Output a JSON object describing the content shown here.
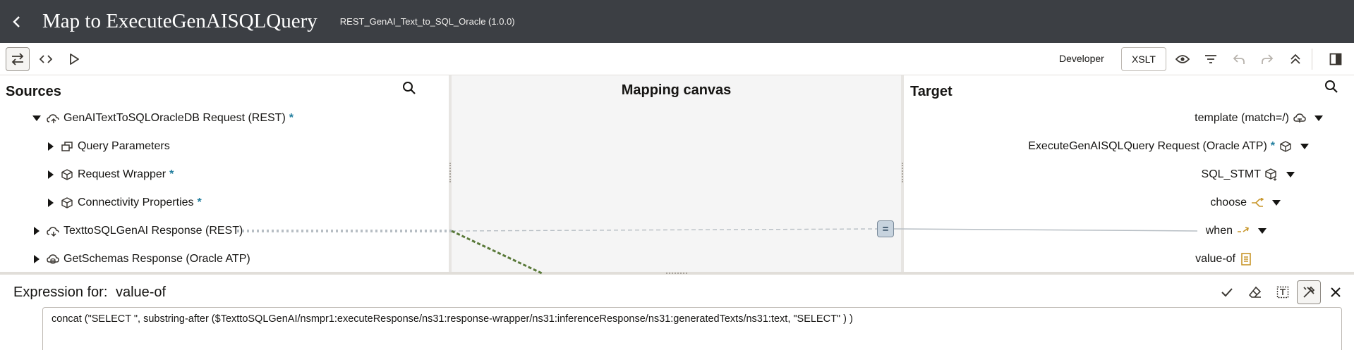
{
  "header": {
    "title": "Map to ExecuteGenAISQLQuery",
    "integration": "REST_GenAI_Text_to_SQL_Oracle (1.0.0)"
  },
  "toolbar": {
    "mode_label": "Developer",
    "xslt_label": "XSLT"
  },
  "sources": {
    "title": "Sources",
    "items": [
      {
        "label": "GenAITextToSQLOracleDB Request (REST)",
        "required": "*",
        "icon": "rest-trigger-icon",
        "state": "expanded"
      },
      {
        "label": "Query Parameters",
        "icon": "query-parameters-icon",
        "state": "collapsed"
      },
      {
        "label": "Request Wrapper",
        "required": "*",
        "icon": "cube-icon",
        "state": "collapsed"
      },
      {
        "label": "Connectivity Properties",
        "required": "*",
        "icon": "cube-icon",
        "state": "collapsed"
      },
      {
        "label": "TexttoSQLGenAI Response (REST)",
        "icon": "rest-invoke-icon",
        "state": "collapsed"
      },
      {
        "label": "GetSchemas Response (Oracle ATP)",
        "icon": "database-icon",
        "state": "collapsed"
      }
    ]
  },
  "canvas": {
    "title": "Mapping canvas",
    "function_symbol": "="
  },
  "target": {
    "title": "Target",
    "items": [
      {
        "label": "template (match=/)",
        "icon": "template-icon"
      },
      {
        "label": "ExecuteGenAISQLQuery Request (Oracle ATP)",
        "required": "*",
        "icon": "cube-icon"
      },
      {
        "label": "SQL_STMT",
        "icon": "cube-download-icon"
      },
      {
        "label": "choose",
        "icon": "choose-icon"
      },
      {
        "label": "when",
        "icon": "when-icon"
      },
      {
        "label": "value-of",
        "icon": "value-of-icon"
      }
    ]
  },
  "expression": {
    "label": "Expression for:",
    "node": "value-of",
    "value": "concat (\"SELECT \", substring-after ($TexttoSQLGenAI/nsmpr1:executeResponse/ns31:response-wrapper/ns31:inferenceResponse/ns31:generatedTexts/ns31:text, \"SELECT\" ) )"
  },
  "colors": {
    "header_bg": "#3c3f44",
    "required": "#227e9e",
    "mapping_line": "#5a7a3a",
    "choose_icon": "#c8962a"
  }
}
